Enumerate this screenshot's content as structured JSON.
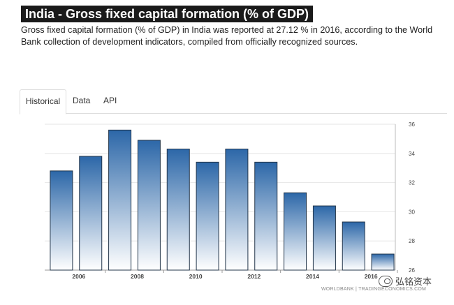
{
  "header": {
    "title": "India - Gross fixed capital formation (% of GDP)",
    "subtitle": "Gross fixed capital formation (% of GDP) in India was reported at 27.12 % in 2016, according to the World Bank collection of development indicators, compiled from officially recognized sources."
  },
  "tabs": [
    {
      "label": "Historical",
      "active": true
    },
    {
      "label": "Data",
      "active": false
    },
    {
      "label": "API",
      "active": false
    }
  ],
  "colors": {
    "bar_top": "#2c67a8",
    "bar_bottom": "#ffffff",
    "bar_stroke": "#22354a",
    "grid": "#e6e6e6"
  },
  "chart_data": {
    "type": "bar",
    "title": "",
    "xlabel": "",
    "ylabel": "",
    "categories": [
      "2005",
      "2006",
      "2007",
      "2008",
      "2009",
      "2010",
      "2011",
      "2012",
      "2013",
      "2014",
      "2015",
      "2016"
    ],
    "values": [
      32.8,
      33.8,
      35.6,
      34.9,
      34.3,
      33.4,
      34.3,
      33.4,
      31.3,
      30.4,
      29.3,
      27.1
    ],
    "ylim": [
      26,
      36
    ],
    "yticks": [
      26,
      28,
      30,
      32,
      34,
      36
    ],
    "xtick_labels": {
      "2006": "2006",
      "2008": "2008",
      "2010": "2010",
      "2012": "2012",
      "2014": "2014",
      "2016": "2016"
    },
    "grid": true,
    "y_axis_side": "right"
  },
  "watermark": {
    "text": "弘铭资本",
    "icon": "wechat-icon"
  },
  "source_text": "WORLDBANK | TRADINGECONOMICS.COM"
}
